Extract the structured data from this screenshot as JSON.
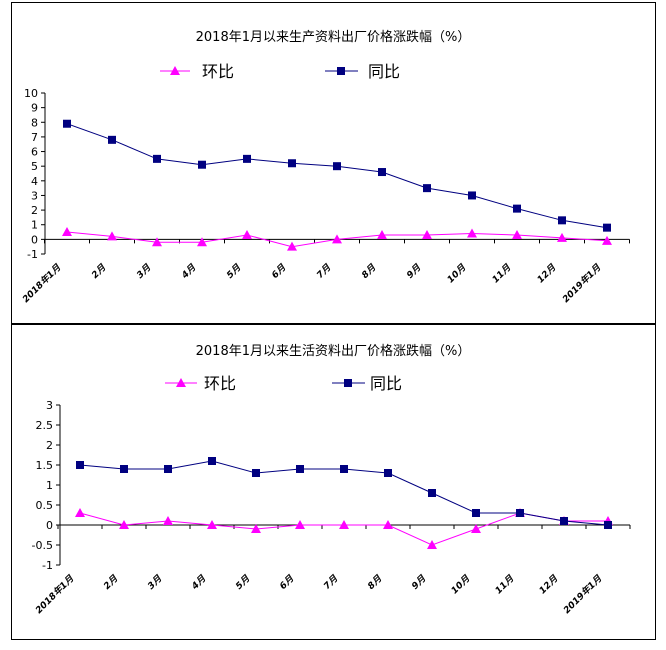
{
  "chart_data": [
    {
      "type": "line",
      "title": "2018年1月以来生产资料出厂价格涨跌幅（%）",
      "categories": [
        "2018年1月",
        "2月",
        "3月",
        "4月",
        "5月",
        "6月",
        "7月",
        "8月",
        "9月",
        "10月",
        "11月",
        "12月",
        "2019年1月"
      ],
      "series": [
        {
          "name": "环比",
          "color": "#ff00ff",
          "marker": "triangle",
          "values": [
            0.5,
            0.2,
            -0.2,
            -0.2,
            0.3,
            -0.5,
            0.0,
            0.3,
            0.3,
            0.4,
            0.3,
            0.1,
            -0.1
          ]
        },
        {
          "name": "同比",
          "color": "#000080",
          "marker": "square",
          "values": [
            7.9,
            6.8,
            5.5,
            5.1,
            5.5,
            5.2,
            5.0,
            4.6,
            3.5,
            3.0,
            2.1,
            1.3,
            0.8
          ]
        }
      ],
      "ylim": [
        -1,
        10
      ],
      "yticks": [
        -1,
        0,
        1,
        2,
        3,
        4,
        5,
        6,
        7,
        8,
        9,
        10
      ],
      "ytick_labels": [
        "-1",
        "0",
        "1",
        "2",
        "3",
        "4",
        "5",
        "6",
        "7",
        "8",
        "9",
        "10"
      ],
      "legend": "top",
      "grid": false
    },
    {
      "type": "line",
      "title": "2018年1月以来生活资料出厂价格涨跌幅（%）",
      "categories": [
        "2018年1月",
        "2月",
        "3月",
        "4月",
        "5月",
        "6月",
        "7月",
        "8月",
        "9月",
        "10月",
        "11月",
        "12月",
        "2019年1月"
      ],
      "series": [
        {
          "name": "环比",
          "color": "#ff00ff",
          "marker": "triangle",
          "values": [
            0.3,
            0.0,
            0.1,
            0.0,
            -0.1,
            0.0,
            0.0,
            0.0,
            -0.5,
            -0.1,
            0.3,
            0.1,
            0.1
          ]
        },
        {
          "name": "同比",
          "color": "#000080",
          "marker": "square",
          "values": [
            1.5,
            1.4,
            1.4,
            1.6,
            1.3,
            1.4,
            1.4,
            1.3,
            0.8,
            0.3,
            0.3,
            0.1,
            0.0
          ]
        }
      ],
      "ylim": [
        -1,
        3
      ],
      "yticks": [
        -1,
        -0.5,
        0,
        0.5,
        1,
        1.5,
        2,
        2.5,
        3
      ],
      "ytick_labels": [
        "-1",
        "-0.5",
        "0",
        "0.5",
        "1",
        "1.5",
        "2",
        "2.5",
        "3"
      ],
      "legend": "top",
      "grid": false
    }
  ]
}
